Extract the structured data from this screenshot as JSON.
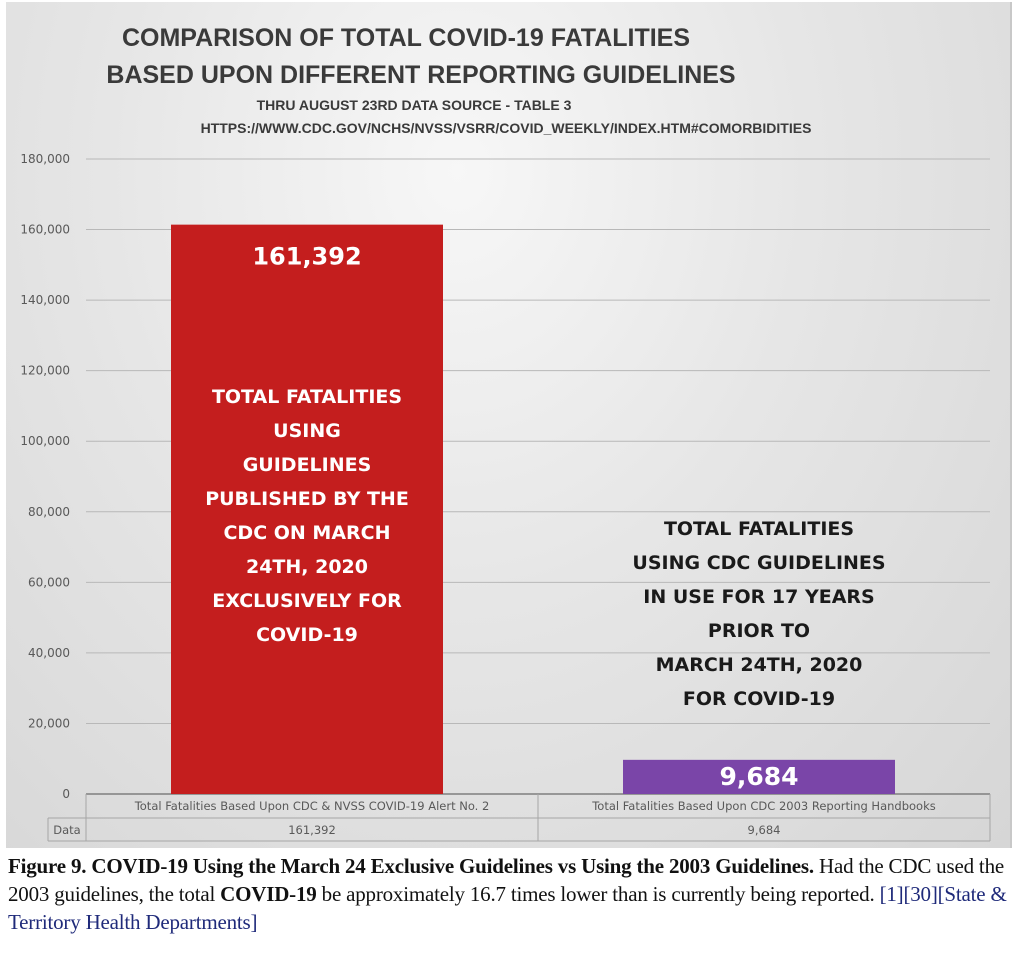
{
  "chart_data": {
    "type": "bar",
    "title": [
      "COMPARISON OF TOTAL COVID-19 FATALITIES",
      "BASED UPON DIFFERENT REPORTING GUIDELINES"
    ],
    "subtitle": [
      "THRU AUGUST 23RD DATA SOURCE - TABLE 3",
      "HTTPS://WWW.CDC.GOV/NCHS/NVSS/VSRR/COVID_WEEKLY/INDEX.HTM#COMORBIDITIES"
    ],
    "xlabel": "",
    "ylabel": "",
    "ylim": [
      0,
      180000
    ],
    "yticks": [
      0,
      20000,
      40000,
      60000,
      80000,
      100000,
      120000,
      140000,
      160000,
      180000
    ],
    "ytick_labels": [
      "0",
      "20,000",
      "40,000",
      "60,000",
      "80,000",
      "100,000",
      "120,000",
      "140,000",
      "160,000",
      "180,000"
    ],
    "grid": true,
    "legend": "none",
    "categories": [
      "Total Fatalities Based Upon CDC & NVSS COVID-19 Alert No. 2",
      "Total Fatalities Based Upon CDC 2003 Reporting Handbooks"
    ],
    "values": [
      161392,
      9684
    ],
    "value_labels": [
      "161,392",
      "9,684"
    ],
    "bar_colors": [
      "#c41e1e",
      "#7a45a8"
    ],
    "data_table": {
      "row_header": "Data",
      "values": [
        "161,392",
        "9,684"
      ]
    },
    "annotations": [
      {
        "attached_to": 0,
        "color": "#ffffff",
        "lines": [
          "TOTAL FATALITIES",
          "USING",
          "GUIDELINES",
          "PUBLISHED BY THE",
          "CDC ON MARCH",
          "24TH, 2020",
          "EXCLUSIVELY FOR",
          "COVID-19"
        ]
      },
      {
        "attached_to": 1,
        "color": "#1a1a1a",
        "lines": [
          "TOTAL FATALITIES",
          "USING CDC GUIDELINES",
          "IN USE FOR 17 YEARS",
          "PRIOR TO",
          "MARCH 24TH, 2020",
          "FOR COVID-19"
        ]
      }
    ]
  },
  "caption": {
    "figure_label": "Figure 9.",
    "bold_title": "COVID-19 Using the March 24 Exclusive Guidelines vs Using the 2003 Guidelines.",
    "text_1": "Had the CDC used the 2003 guidelines, the total",
    "bold_term": "COVID-19",
    "text_2": "be approximately 16.7 times lower than is currently being reported.",
    "citations": [
      "[1]",
      "[30]",
      "[State & Territory Health Departments]"
    ]
  }
}
